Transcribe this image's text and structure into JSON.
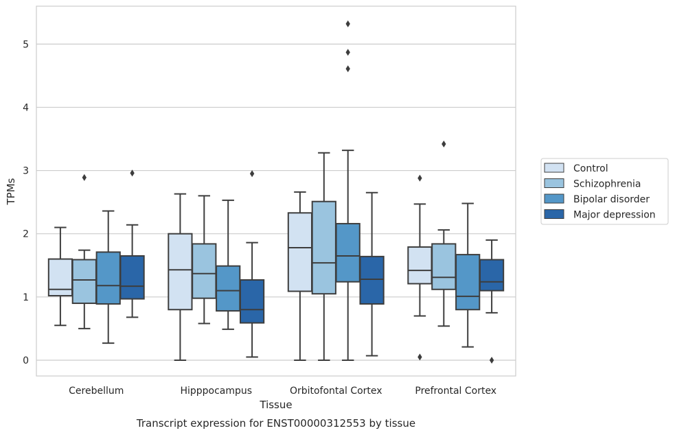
{
  "chart_data": {
    "type": "box",
    "title": "Transcript expression for ENST00000312553 by tissue",
    "xlabel": "Tissue",
    "ylabel": "TPMs",
    "ylim": [
      -0.25,
      5.6
    ],
    "yticks": [
      0,
      1,
      2,
      3,
      4,
      5
    ],
    "grid": true,
    "legend_position": "right",
    "categories": [
      "Cerebellum",
      "Hipppocampus",
      "Orbitofontal Cortex",
      "Prefrontal Cortex"
    ],
    "series": [
      {
        "name": "Control",
        "color": "#d2e2f2",
        "boxes": [
          {
            "whisker_low": 0.55,
            "q1": 1.02,
            "median": 1.12,
            "q3": 1.6,
            "whisker_high": 2.1,
            "outliers": []
          },
          {
            "whisker_low": 0.0,
            "q1": 0.8,
            "median": 1.43,
            "q3": 2.0,
            "whisker_high": 2.63,
            "outliers": []
          },
          {
            "whisker_low": 0.0,
            "q1": 1.09,
            "median": 1.78,
            "q3": 2.33,
            "whisker_high": 2.66,
            "outliers": []
          },
          {
            "whisker_low": 0.7,
            "q1": 1.21,
            "median": 1.42,
            "q3": 1.79,
            "whisker_high": 2.47,
            "outliers": [
              2.88,
              0.05
            ]
          }
        ]
      },
      {
        "name": "Schizophrenia",
        "color": "#9ac4df",
        "boxes": [
          {
            "whisker_low": 0.5,
            "q1": 0.9,
            "median": 1.27,
            "q3": 1.59,
            "whisker_high": 1.74,
            "outliers": [
              2.89
            ]
          },
          {
            "whisker_low": 0.58,
            "q1": 0.98,
            "median": 1.37,
            "q3": 1.84,
            "whisker_high": 2.6,
            "outliers": []
          },
          {
            "whisker_low": 0.0,
            "q1": 1.05,
            "median": 1.54,
            "q3": 2.51,
            "whisker_high": 3.28,
            "outliers": []
          },
          {
            "whisker_low": 0.54,
            "q1": 1.12,
            "median": 1.31,
            "q3": 1.84,
            "whisker_high": 2.06,
            "outliers": [
              3.42
            ]
          }
        ]
      },
      {
        "name": "Bipolar disorder",
        "color": "#5497c8",
        "boxes": [
          {
            "whisker_low": 0.27,
            "q1": 0.89,
            "median": 1.18,
            "q3": 1.71,
            "whisker_high": 2.36,
            "outliers": []
          },
          {
            "whisker_low": 0.49,
            "q1": 0.78,
            "median": 1.1,
            "q3": 1.49,
            "whisker_high": 2.53,
            "outliers": []
          },
          {
            "whisker_low": 0.0,
            "q1": 1.24,
            "median": 1.65,
            "q3": 2.16,
            "whisker_high": 3.32,
            "outliers": [
              5.32,
              4.87,
              4.61
            ]
          },
          {
            "whisker_low": 0.21,
            "q1": 0.8,
            "median": 1.01,
            "q3": 1.67,
            "whisker_high": 2.48,
            "outliers": []
          }
        ]
      },
      {
        "name": "Major depression",
        "color": "#2a66a8",
        "boxes": [
          {
            "whisker_low": 0.68,
            "q1": 0.97,
            "median": 1.17,
            "q3": 1.65,
            "whisker_high": 2.14,
            "outliers": [
              2.96
            ]
          },
          {
            "whisker_low": 0.05,
            "q1": 0.59,
            "median": 0.8,
            "q3": 1.27,
            "whisker_high": 1.86,
            "outliers": [
              2.95
            ]
          },
          {
            "whisker_low": 0.07,
            "q1": 0.89,
            "median": 1.28,
            "q3": 1.64,
            "whisker_high": 2.65,
            "outliers": []
          },
          {
            "whisker_low": 0.75,
            "q1": 1.1,
            "median": 1.24,
            "q3": 1.59,
            "whisker_high": 1.9,
            "outliers": [
              0.0
            ]
          }
        ]
      }
    ]
  }
}
